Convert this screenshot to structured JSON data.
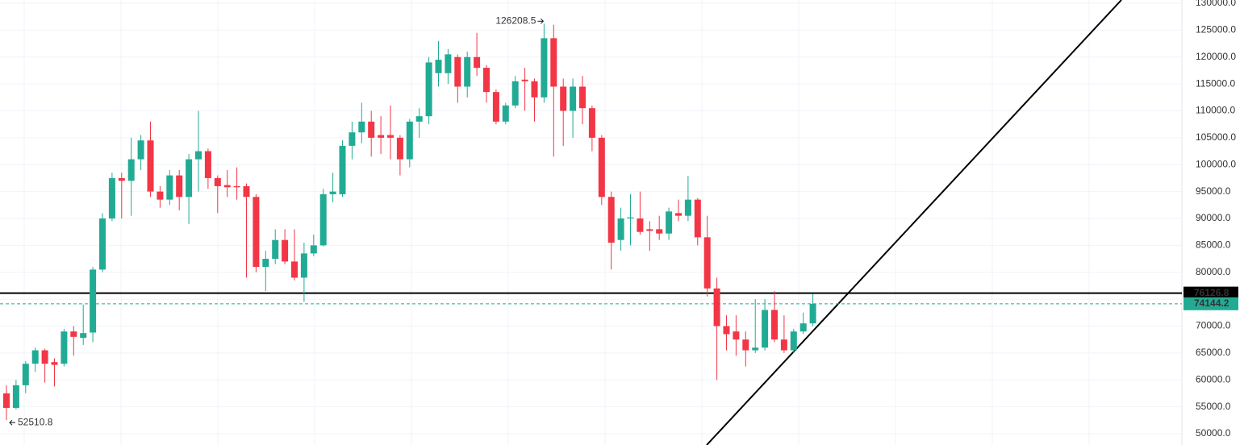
{
  "chart_data": {
    "type": "candlestick",
    "up_color": "#22ab94",
    "down_color": "#f23645",
    "open": [
      57500,
      54800,
      59000,
      63000,
      65500,
      63300,
      63000,
      69000,
      67800,
      68800,
      80500,
      90000,
      97500,
      97000,
      101000,
      104500,
      95000,
      93500,
      98000,
      94000,
      101000,
      102500,
      97500,
      96200,
      96000,
      96000,
      94000,
      81000,
      82500,
      86000,
      82000,
      79000,
      83500,
      85000,
      94500,
      94500,
      103500,
      106000,
      108000,
      105500,
      105500,
      105000,
      101000,
      108000,
      109000,
      117000,
      117000,
      120000,
      114500,
      120000,
      118000,
      113500,
      108000,
      111000,
      115800,
      115500,
      112500,
      123500,
      114500,
      110000,
      114500,
      110500,
      105000,
      94000,
      86000,
      90000,
      90000,
      88000,
      88000,
      87200,
      91000,
      90500,
      93500,
      86500,
      77000,
      70000,
      69000,
      67500,
      65500,
      66000,
      73000,
      67500,
      65500,
      69000,
      70500
    ],
    "high": [
      59000,
      60000,
      63500,
      66000,
      65800,
      64000,
      69500,
      70000,
      74000,
      81000,
      91000,
      98500,
      98500,
      105000,
      105500,
      108000,
      96000,
      99000,
      99000,
      102000,
      110000,
      103000,
      98000,
      99000,
      99500,
      96500,
      94500,
      84000,
      88000,
      88000,
      88000,
      85500,
      87000,
      95500,
      98500,
      104500,
      108000,
      111500,
      110000,
      109000,
      111000,
      105500,
      108500,
      110500,
      120000,
      123000,
      121500,
      120500,
      121000,
      124500,
      118500,
      114000,
      111500,
      116500,
      118000,
      116000,
      126208.5,
      126000,
      116000,
      116000,
      116500,
      111000,
      105500,
      95000,
      92000,
      94500,
      95000,
      89500,
      90500,
      92000,
      93500,
      97900,
      93800,
      90500,
      79000,
      72000,
      72000,
      69000,
      75000,
      75000,
      76500,
      72000,
      69500,
      72500,
      76000
    ],
    "low": [
      52510.8,
      54500,
      57500,
      61500,
      59500,
      58800,
      62500,
      64500,
      66500,
      67000,
      80000,
      89500,
      90000,
      90500,
      99000,
      94000,
      92000,
      92500,
      91500,
      89000,
      95000,
      95500,
      91000,
      94000,
      93500,
      79000,
      80000,
      76500,
      81500,
      81500,
      78500,
      74500,
      83000,
      84800,
      93000,
      94000,
      101000,
      104000,
      101500,
      102000,
      101000,
      98000,
      99500,
      105000,
      107500,
      114500,
      115000,
      111500,
      112500,
      116500,
      111500,
      107500,
      107500,
      110500,
      110000,
      108000,
      111500,
      101500,
      103500,
      105000,
      107500,
      102500,
      92500,
      80500,
      84000,
      85000,
      87000,
      84000,
      86000,
      86000,
      89500,
      89500,
      85000,
      75500,
      60000,
      65500,
      64500,
      62500,
      65000,
      65500,
      67000,
      65000,
      65000,
      68500,
      70000
    ],
    "close": [
      54800,
      59000,
      63000,
      65500,
      63000,
      62800,
      69000,
      68000,
      68700,
      80500,
      90000,
      97500,
      97000,
      101000,
      104500,
      95000,
      93500,
      98000,
      94000,
      101000,
      102500,
      97500,
      96000,
      95800,
      95800,
      94000,
      81000,
      82500,
      86000,
      82000,
      79000,
      83500,
      85000,
      94500,
      95000,
      103500,
      106000,
      108000,
      105000,
      105000,
      105000,
      101000,
      108000,
      109000,
      119000,
      119500,
      120500,
      114500,
      120000,
      118000,
      113500,
      108000,
      111000,
      115500,
      115500,
      112500,
      123500,
      114500,
      110000,
      114500,
      110500,
      105000,
      94000,
      85500,
      90000,
      90200,
      87500,
      87700,
      87200,
      91300,
      90500,
      93500,
      86500,
      77000,
      70000,
      68500,
      67500,
      65500,
      66000,
      73000,
      67500,
      65500,
      69000,
      70500,
      74144.2
    ],
    "annotations": [
      {
        "value": 126208.5,
        "at": "high"
      },
      {
        "value": 52510.8,
        "at": "low"
      }
    ],
    "price_lines": [
      {
        "value": 76126.8,
        "color": "#000000"
      },
      {
        "value": 74144.2,
        "color": "#22ab94"
      }
    ],
    "ylim": [
      47900,
      130600
    ],
    "yticks": [
      {
        "value": 50000,
        "label": "50000.0"
      },
      {
        "value": 55000,
        "label": "55000.0"
      },
      {
        "value": 60000,
        "label": "60000.0"
      },
      {
        "value": 65000,
        "label": "65000.0"
      },
      {
        "value": 70000,
        "label": "70000.0"
      },
      {
        "value": 75000,
        "label": "75000.0"
      },
      {
        "value": 80000,
        "label": "80000.0"
      },
      {
        "value": 85000,
        "label": "85000.0"
      },
      {
        "value": 90000,
        "label": "90000.0"
      },
      {
        "value": 95000,
        "label": "95000.0"
      },
      {
        "value": 100000,
        "label": "100000.0"
      },
      {
        "value": 105000,
        "label": "105000.0"
      },
      {
        "value": 110000,
        "label": "110000.0"
      },
      {
        "value": 115000,
        "label": "115000.0"
      },
      {
        "value": 120000,
        "label": "120000.0"
      },
      {
        "value": 125000,
        "label": "125000.0"
      },
      {
        "value": 130000,
        "label": "130000.0"
      }
    ],
    "grid": true
  }
}
